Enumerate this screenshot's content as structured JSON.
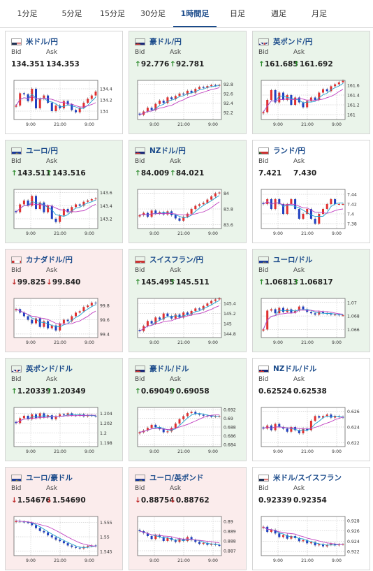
{
  "tabs": [
    {
      "label": "1分足",
      "active": false
    },
    {
      "label": "5分足",
      "active": false
    },
    {
      "label": "15分足",
      "active": false
    },
    {
      "label": "30分足",
      "active": false
    },
    {
      "label": "1時間足",
      "active": true
    },
    {
      "label": "日足",
      "active": false
    },
    {
      "label": "週足",
      "active": false
    },
    {
      "label": "月足",
      "active": false
    }
  ],
  "colors": {
    "accent": "#1a4a8a",
    "up_candle": "#e03030",
    "down_candle": "#2040c0",
    "ma_short": "#20a0d0",
    "ma_long": "#c040c0",
    "up_arrow": "#2a8a2a",
    "down_arrow": "#c03030"
  },
  "bid_label": "Bid",
  "ask_label": "Ask",
  "cards": [
    {
      "name": "米ドル/円",
      "flag": "us-flag",
      "trend": "flat",
      "bid": "134.351",
      "ask": "134.353",
      "chart_data": {
        "type": "candlestick",
        "x_ticks": [
          "9:00",
          "21:00",
          "9:00"
        ],
        "y_ticks": [
          "134.4",
          "134.2",
          "134"
        ],
        "ylim": [
          133.85,
          134.55
        ],
        "close": [
          134.1,
          134.32,
          134.3,
          134.18,
          134.4,
          134.05,
          134.22,
          134.28,
          134.15,
          134.0,
          134.1,
          134.05,
          134.18,
          134.12,
          134.02,
          133.98,
          134.06,
          134.15,
          134.22,
          134.28,
          134.35
        ]
      }
    },
    {
      "name": "豪ドル/円",
      "flag": "au-flag",
      "trend": "up",
      "bid": "92.776",
      "ask": "92.781",
      "chart_data": {
        "type": "candlestick",
        "x_ticks": [
          "9:00",
          "21:00",
          "9:00"
        ],
        "y_ticks": [
          "92.8",
          "92.6",
          "92.4",
          "92.2"
        ],
        "ylim": [
          92.05,
          92.88
        ],
        "close": [
          92.15,
          92.22,
          92.3,
          92.25,
          92.38,
          92.45,
          92.4,
          92.52,
          92.48,
          92.55,
          92.6,
          92.58,
          92.66,
          92.62,
          92.7,
          92.74,
          92.72,
          92.76,
          92.78,
          92.77,
          92.78
        ]
      }
    },
    {
      "name": "英ポンド/円",
      "flag": "gb-flag",
      "trend": "up",
      "bid": "161.685",
      "ask": "161.692",
      "chart_data": {
        "type": "candlestick",
        "x_ticks": [
          "9:00",
          "21:00",
          "9:00"
        ],
        "y_ticks": [
          "161.6",
          "161.4",
          "161.2",
          "161"
        ],
        "ylim": [
          160.9,
          161.7
        ],
        "close": [
          161.05,
          161.3,
          161.5,
          161.25,
          161.45,
          161.3,
          161.4,
          161.2,
          161.35,
          161.25,
          161.15,
          161.28,
          161.35,
          161.3,
          161.45,
          161.52,
          161.48,
          161.58,
          161.62,
          161.66,
          161.69
        ]
      }
    },
    {
      "name": "ユーロ/円",
      "flag": "eu-flag",
      "trend": "up",
      "bid": "143.511",
      "ask": "143.516",
      "chart_data": {
        "type": "candlestick",
        "x_ticks": [
          "9:00",
          "21:00",
          "9:00"
        ],
        "y_ticks": [
          "143.6",
          "143.4",
          "143.2"
        ],
        "ylim": [
          143.05,
          143.65
        ],
        "close": [
          143.3,
          143.42,
          143.48,
          143.4,
          143.55,
          143.35,
          143.45,
          143.3,
          143.4,
          143.2,
          143.15,
          143.25,
          143.35,
          143.3,
          143.38,
          143.42,
          143.4,
          143.46,
          143.48,
          143.5,
          143.51
        ]
      }
    },
    {
      "name": "NZドル/円",
      "flag": "nz-flag",
      "trend": "up",
      "bid": "84.009",
      "ask": "84.021",
      "chart_data": {
        "type": "candlestick",
        "x_ticks": [
          "9:00",
          "21:00",
          "9:00"
        ],
        "y_ticks": [
          "84",
          "83.8",
          "83.6"
        ],
        "ylim": [
          83.55,
          84.05
        ],
        "close": [
          83.72,
          83.75,
          83.7,
          83.78,
          83.74,
          83.76,
          83.73,
          83.77,
          83.72,
          83.68,
          83.65,
          83.7,
          83.74,
          83.8,
          83.84,
          83.86,
          83.88,
          83.92,
          83.96,
          84.0,
          84.01
        ]
      }
    },
    {
      "name": "ランド/円",
      "flag": "za-flag",
      "trend": "flat",
      "bid": "7.421",
      "ask": "7.430",
      "chart_data": {
        "type": "candlestick",
        "x_ticks": [
          "9:00",
          "21:00",
          "9:00"
        ],
        "y_ticks": [
          "7.44",
          "7.42",
          "7.4",
          "7.38"
        ],
        "ylim": [
          7.37,
          7.45
        ],
        "close": [
          7.42,
          7.43,
          7.41,
          7.43,
          7.42,
          7.4,
          7.42,
          7.43,
          7.41,
          7.39,
          7.4,
          7.41,
          7.39,
          7.38,
          7.4,
          7.41,
          7.42,
          7.43,
          7.42,
          7.42,
          7.42
        ]
      }
    },
    {
      "name": "カナダドル/円",
      "flag": "ca-flag",
      "trend": "down",
      "bid": "99.825",
      "ask": "99.840",
      "chart_data": {
        "type": "candlestick",
        "x_ticks": [
          "9:00",
          "21:00",
          "9:00"
        ],
        "y_ticks": [
          "99.8",
          "99.6",
          "99.4"
        ],
        "ylim": [
          99.35,
          99.9
        ],
        "close": [
          99.75,
          99.7,
          99.65,
          99.6,
          99.55,
          99.62,
          99.5,
          99.58,
          99.48,
          99.52,
          99.45,
          99.55,
          99.6,
          99.58,
          99.65,
          99.7,
          99.72,
          99.78,
          99.8,
          99.84,
          99.83
        ]
      }
    },
    {
      "name": "スイスフラン/円",
      "flag": "ch-flag",
      "trend": "up",
      "bid": "145.495",
      "ask": "145.511",
      "chart_data": {
        "type": "candlestick",
        "x_ticks": [
          "9:00",
          "21:00",
          "9:00"
        ],
        "y_ticks": [
          "145.4",
          "145.2",
          "145",
          "144.8"
        ],
        "ylim": [
          144.72,
          145.5
        ],
        "close": [
          144.85,
          144.95,
          145.05,
          145.0,
          145.12,
          145.08,
          145.2,
          145.15,
          145.1,
          145.18,
          145.12,
          145.22,
          145.18,
          145.25,
          145.3,
          145.28,
          145.35,
          145.4,
          145.45,
          145.48,
          145.5
        ]
      }
    },
    {
      "name": "ユーロ/ドル",
      "flag": "eu-flag",
      "trend": "up",
      "bid": "1.06813",
      "ask": "1.06817",
      "chart_data": {
        "type": "candlestick",
        "x_ticks": [
          "9:00",
          "21:00",
          "9:00"
        ],
        "y_ticks": [
          "1.07",
          "1.068",
          "1.066"
        ],
        "ylim": [
          1.0648,
          1.0706
        ],
        "close": [
          1.066,
          1.0688,
          1.069,
          1.0684,
          1.0692,
          1.0686,
          1.069,
          1.0685,
          1.0688,
          1.0694,
          1.069,
          1.0686,
          1.0684,
          1.0682,
          1.0686,
          1.0684,
          1.0683,
          1.0682,
          1.0682,
          1.0681,
          1.0681
        ]
      }
    },
    {
      "name": "英ポンド/ドル",
      "flag": "gb-flag",
      "trend": "up",
      "bid": "1.20339",
      "ask": "1.20349",
      "chart_data": {
        "type": "candlestick",
        "x_ticks": [
          "9:00",
          "21:00",
          "9:00"
        ],
        "y_ticks": [
          "1.204",
          "1.202",
          "1.2",
          "1.198"
        ],
        "ylim": [
          1.1972,
          1.2052
        ],
        "close": [
          1.202,
          1.203,
          1.2035,
          1.2028,
          1.2038,
          1.203,
          1.204,
          1.2032,
          1.2036,
          1.2028,
          1.2034,
          1.2038,
          1.2036,
          1.204,
          1.2036,
          1.2035,
          1.2038,
          1.2034,
          1.2036,
          1.2035,
          1.2034
        ]
      }
    },
    {
      "name": "豪ドル/ドル",
      "flag": "au-flag",
      "trend": "up",
      "bid": "0.69049",
      "ask": "0.69058",
      "chart_data": {
        "type": "candlestick",
        "x_ticks": [
          "9:00",
          "21:00",
          "9:00"
        ],
        "y_ticks": [
          "0.692",
          "0.69",
          "0.688",
          "0.686",
          "0.684"
        ],
        "ylim": [
          0.6835,
          0.6925
        ],
        "close": [
          0.6868,
          0.6872,
          0.6878,
          0.6885,
          0.688,
          0.6875,
          0.6868,
          0.687,
          0.6878,
          0.6888,
          0.6898,
          0.6905,
          0.6912,
          0.6915,
          0.691,
          0.6908,
          0.6906,
          0.6905,
          0.6904,
          0.6905,
          0.6905
        ]
      }
    },
    {
      "name": "NZドル/ドル",
      "flag": "nz-flag",
      "trend": "flat",
      "bid": "0.62524",
      "ask": "0.62538",
      "chart_data": {
        "type": "candlestick",
        "x_ticks": [
          "9:00",
          "21:00",
          "9:00"
        ],
        "y_ticks": [
          "0.626",
          "0.624",
          "0.622"
        ],
        "ylim": [
          0.6215,
          0.6265
        ],
        "close": [
          0.6238,
          0.6242,
          0.6236,
          0.6244,
          0.624,
          0.6238,
          0.6234,
          0.624,
          0.6236,
          0.6232,
          0.6238,
          0.6236,
          0.6248,
          0.6254,
          0.6252,
          0.6254,
          0.6256,
          0.6252,
          0.6254,
          0.6253,
          0.6252
        ]
      }
    },
    {
      "name": "ユーロ/豪ドル",
      "flag": "eu-flag",
      "trend": "down",
      "bid": "1.54676",
      "ask": "1.54690",
      "chart_data": {
        "type": "candlestick",
        "x_ticks": [
          "9:00",
          "21:00",
          "9:00"
        ],
        "y_ticks": [
          "1.555",
          "1.55",
          "1.545"
        ],
        "ylim": [
          1.5435,
          1.557
        ],
        "close": [
          1.5555,
          1.5552,
          1.555,
          1.5548,
          1.554,
          1.553,
          1.552,
          1.5515,
          1.5505,
          1.5498,
          1.549,
          1.5485,
          1.5478,
          1.547,
          1.5465,
          1.5462,
          1.546,
          1.5465,
          1.5468,
          1.547,
          1.5468
        ]
      }
    },
    {
      "name": "ユーロ/英ポンド",
      "flag": "eu-flag",
      "trend": "down",
      "bid": "0.88754",
      "ask": "0.88762",
      "chart_data": {
        "type": "candlestick",
        "x_ticks": [
          "9:00",
          "21:00",
          "9:00"
        ],
        "y_ticks": [
          "0.89",
          "0.889",
          "0.888",
          "0.887"
        ],
        "ylim": [
          0.8865,
          0.8905
        ],
        "close": [
          0.889,
          0.8888,
          0.8885,
          0.8882,
          0.8886,
          0.8884,
          0.888,
          0.8883,
          0.8881,
          0.8879,
          0.8882,
          0.888,
          0.8884,
          0.8881,
          0.8879,
          0.8877,
          0.8878,
          0.8876,
          0.8877,
          0.8876,
          0.8875
        ]
      }
    },
    {
      "name": "米ドル/スイスフラン",
      "flag": "us-flag",
      "trend": "flat",
      "bid": "0.92339",
      "ask": "0.92354",
      "chart_data": {
        "type": "candlestick",
        "x_ticks": [
          "9:00",
          "21:00",
          "9:00"
        ],
        "y_ticks": [
          "0.928",
          "0.926",
          "0.924",
          "0.922"
        ],
        "ylim": [
          0.9212,
          0.9288
        ],
        "close": [
          0.9268,
          0.9258,
          0.9262,
          0.9255,
          0.9248,
          0.9252,
          0.9245,
          0.925,
          0.9246,
          0.924,
          0.9242,
          0.9236,
          0.9238,
          0.9232,
          0.9234,
          0.923,
          0.9233,
          0.9235,
          0.9232,
          0.9234,
          0.9234
        ]
      }
    }
  ]
}
